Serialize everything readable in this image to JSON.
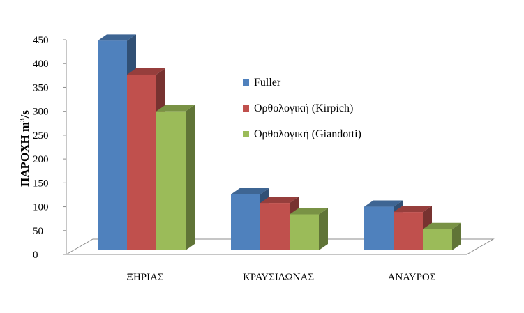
{
  "chart_data": {
    "type": "bar",
    "style": "3d-clustered-column",
    "categories": [
      "ΞΗΡΙΑΣ",
      "ΚΡΑΥΣΙΔΩΝΑΣ",
      "ΑΝΑΥΡΟΣ"
    ],
    "series": [
      {
        "name": "Fuller",
        "values": [
          448,
          126,
          100
        ],
        "color": "#4f81bd"
      },
      {
        "name": "Ορθολογική (Kirpich)",
        "values": [
          377,
          108,
          89
        ],
        "color": "#c0504d"
      },
      {
        "name": "Ορθολογική (Giandotti)",
        "values": [
          300,
          84,
          53
        ],
        "color": "#9bbb59"
      }
    ],
    "ylabel_main": "ΠΑΡΟΧΗ m",
    "ylabel_sup": "3",
    "ylabel_tail": "/s",
    "ylim": [
      0,
      450
    ],
    "yticks": [
      "0",
      "50",
      "100",
      "150",
      "200",
      "250",
      "300",
      "350",
      "400",
      "450"
    ],
    "grid": false,
    "legend_position": "right"
  }
}
